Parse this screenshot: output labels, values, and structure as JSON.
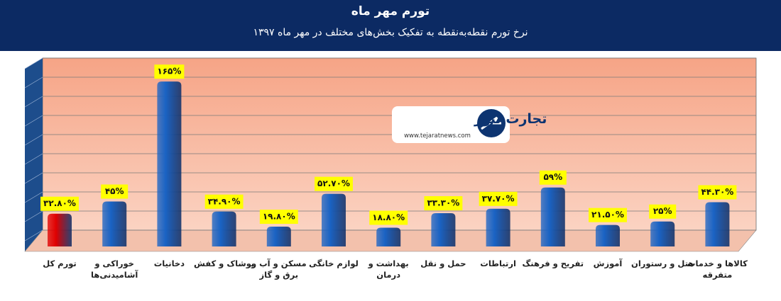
{
  "chart_data": {
    "type": "bar3d",
    "title": "تورم مهر ماه",
    "subtitle": "نرخ تورم نقطه‌به‌نقطه به تفکیک بخش‌های مختلف در مهر ماه ۱۳۹۷",
    "categories": [
      "تورم کل",
      "خوراکی و آشامیدنی‌ها",
      "دخانیات",
      "پوشاک و کفش",
      "مسکن و آب و برق و گاز",
      "لوازم خانگی",
      "بهداشت و درمان",
      "حمل و نقل",
      "ارتباطات",
      "تفریح و فرهنگ",
      "آموزش",
      "هتل و رستوران",
      "کالاها و خدمات متفرقه"
    ],
    "values": [
      32.8,
      45,
      165,
      34.9,
      19.8,
      52.7,
      18.8,
      33.3,
      37.7,
      59,
      21.5,
      25,
      44.3
    ],
    "value_labels": [
      "۳۲.۸۰%",
      "۴۵%",
      "۱۶۵%",
      "۳۴.۹۰%",
      "۱۹.۸۰%",
      "۵۲.۷۰%",
      "۱۸.۸۰%",
      "۳۳.۳۰%",
      "۳۷.۷۰%",
      "۵۹%",
      "۲۱.۵۰%",
      "۲۵%",
      "۴۴.۳۰%"
    ],
    "colors": [
      "#e00000",
      "#1a63c4",
      "#1a63c4",
      "#1a63c4",
      "#1a63c4",
      "#1a63c4",
      "#1a63c4",
      "#1a63c4",
      "#1a63c4",
      "#1a63c4",
      "#1a63c4",
      "#1a63c4",
      "#1a63c4"
    ],
    "ylim": [
      0,
      180
    ],
    "yticks": [
      0,
      20,
      40,
      60,
      80,
      100,
      120,
      140,
      160,
      180
    ],
    "grid": true
  },
  "watermark": {
    "name": "تجارت نیوز",
    "url": "www.tejaratnews.com"
  }
}
